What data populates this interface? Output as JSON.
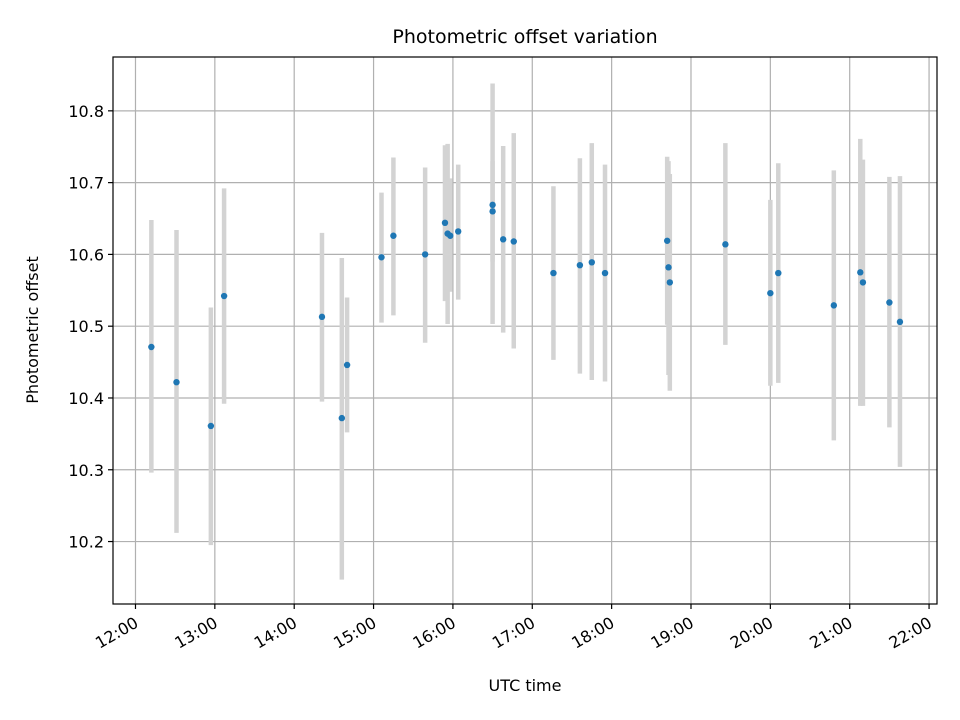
{
  "chart_data": {
    "type": "scatter",
    "title": "Photometric offset variation",
    "xlabel": "UTC time",
    "ylabel": "Photometric offset",
    "x_ticks": [
      "12:00",
      "13:00",
      "14:00",
      "15:00",
      "16:00",
      "17:00",
      "18:00",
      "19:00",
      "20:00",
      "21:00",
      "22:00"
    ],
    "y_ticks": [
      "10.2",
      "10.3",
      "10.4",
      "10.5",
      "10.6",
      "10.7",
      "10.8"
    ],
    "xlim": [
      "11:43",
      "22:06"
    ],
    "ylim": [
      10.113,
      10.875
    ],
    "grid": true,
    "colors": {
      "point": "#1f77b4",
      "errorbar": "#d3d3d3",
      "grid": "#b0b0b0"
    },
    "points": [
      {
        "x": "12:12",
        "y": 10.471,
        "ylow": 10.296,
        "yhigh": 10.648
      },
      {
        "x": "12:31",
        "y": 10.422,
        "ylow": 10.212,
        "yhigh": 10.634
      },
      {
        "x": "12:57",
        "y": 10.361,
        "ylow": 10.195,
        "yhigh": 10.526
      },
      {
        "x": "13:07",
        "y": 10.542,
        "ylow": 10.392,
        "yhigh": 10.692
      },
      {
        "x": "14:21",
        "y": 10.513,
        "ylow": 10.395,
        "yhigh": 10.63
      },
      {
        "x": "14:36",
        "y": 10.372,
        "ylow": 10.147,
        "yhigh": 10.595
      },
      {
        "x": "14:40",
        "y": 10.446,
        "ylow": 10.352,
        "yhigh": 10.54
      },
      {
        "x": "15:06",
        "y": 10.596,
        "ylow": 10.505,
        "yhigh": 10.686
      },
      {
        "x": "15:15",
        "y": 10.626,
        "ylow": 10.515,
        "yhigh": 10.735
      },
      {
        "x": "15:39",
        "y": 10.6,
        "ylow": 10.477,
        "yhigh": 10.721
      },
      {
        "x": "15:54",
        "y": 10.644,
        "ylow": 10.535,
        "yhigh": 10.752
      },
      {
        "x": "15:56",
        "y": 10.629,
        "ylow": 10.503,
        "yhigh": 10.754
      },
      {
        "x": "15:58",
        "y": 10.626,
        "ylow": 10.548,
        "yhigh": 10.706
      },
      {
        "x": "16:04",
        "y": 10.632,
        "ylow": 10.537,
        "yhigh": 10.725
      },
      {
        "x": "16:30",
        "y": 10.669,
        "ylow": 10.503,
        "yhigh": 10.838
      },
      {
        "x": "16:30",
        "y": 10.66,
        "ylow": 10.59,
        "yhigh": 10.73
      },
      {
        "x": "16:38",
        "y": 10.621,
        "ylow": 10.491,
        "yhigh": 10.751
      },
      {
        "x": "16:46",
        "y": 10.618,
        "ylow": 10.469,
        "yhigh": 10.769
      },
      {
        "x": "17:16",
        "y": 10.574,
        "ylow": 10.453,
        "yhigh": 10.695
      },
      {
        "x": "17:36",
        "y": 10.585,
        "ylow": 10.434,
        "yhigh": 10.734
      },
      {
        "x": "17:45",
        "y": 10.589,
        "ylow": 10.425,
        "yhigh": 10.755
      },
      {
        "x": "17:55",
        "y": 10.574,
        "ylow": 10.423,
        "yhigh": 10.725
      },
      {
        "x": "18:42",
        "y": 10.619,
        "ylow": 10.502,
        "yhigh": 10.736
      },
      {
        "x": "18:43",
        "y": 10.582,
        "ylow": 10.432,
        "yhigh": 10.73
      },
      {
        "x": "18:44",
        "y": 10.561,
        "ylow": 10.41,
        "yhigh": 10.712
      },
      {
        "x": "19:26",
        "y": 10.614,
        "ylow": 10.474,
        "yhigh": 10.755
      },
      {
        "x": "20:00",
        "y": 10.546,
        "ylow": 10.417,
        "yhigh": 10.676
      },
      {
        "x": "20:06",
        "y": 10.574,
        "ylow": 10.421,
        "yhigh": 10.727
      },
      {
        "x": "20:48",
        "y": 10.529,
        "ylow": 10.341,
        "yhigh": 10.717
      },
      {
        "x": "21:08",
        "y": 10.575,
        "ylow": 10.389,
        "yhigh": 10.761
      },
      {
        "x": "21:10",
        "y": 10.561,
        "ylow": 10.389,
        "yhigh": 10.732
      },
      {
        "x": "21:30",
        "y": 10.533,
        "ylow": 10.359,
        "yhigh": 10.708
      },
      {
        "x": "21:38",
        "y": 10.506,
        "ylow": 10.304,
        "yhigh": 10.709
      }
    ]
  }
}
